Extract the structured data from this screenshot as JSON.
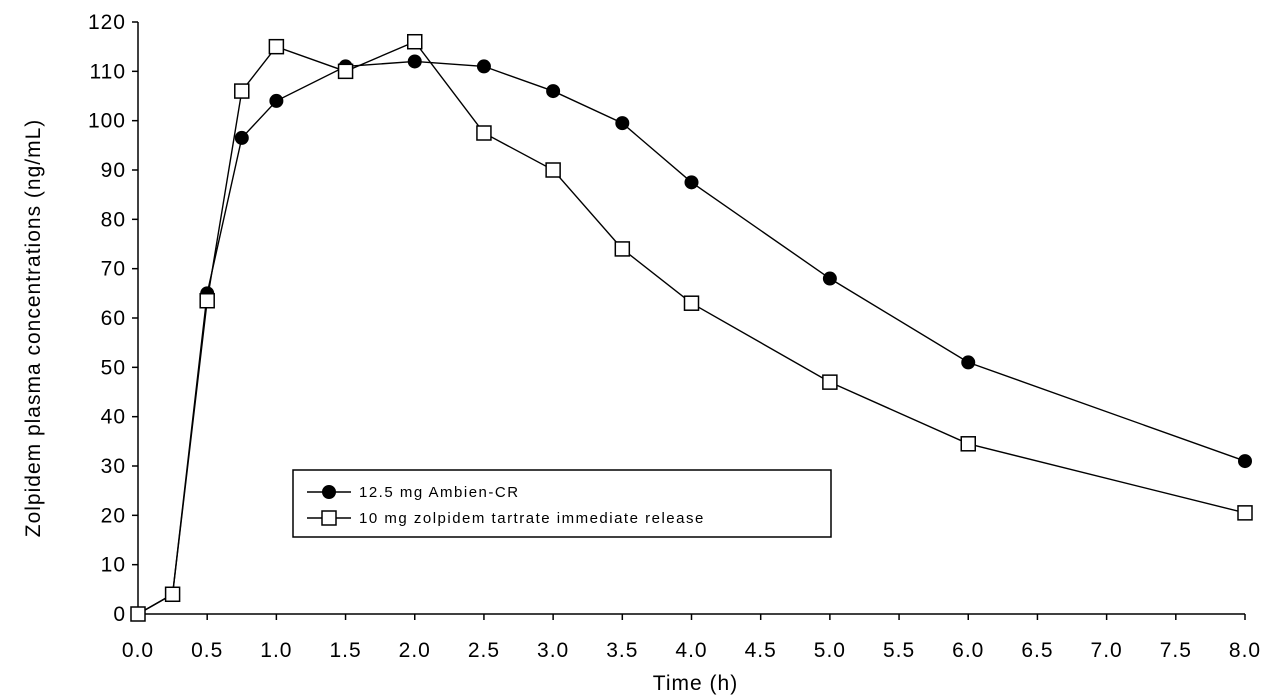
{
  "chart_data": {
    "type": "line",
    "title": "",
    "xlabel": "Time (h)",
    "ylabel": "Zolpidem plasma concentrations (ng/mL)",
    "xlim": [
      0,
      8
    ],
    "ylim": [
      0,
      120
    ],
    "x_ticks": [
      "0.0",
      "0.5",
      "1.0",
      "1.5",
      "2.0",
      "2.5",
      "3.0",
      "3.5",
      "4.0",
      "4.5",
      "5.0",
      "5.5",
      "6.0",
      "6.5",
      "7.0",
      "7.5",
      "8.0"
    ],
    "y_ticks": [
      "0",
      "10",
      "20",
      "30",
      "40",
      "50",
      "60",
      "70",
      "80",
      "90",
      "100",
      "110",
      "120"
    ],
    "grid": false,
    "legend_position": "lower-left-center",
    "series": [
      {
        "name": "12.5 mg Ambien-CR",
        "marker": "filled-circle",
        "color": "#000000",
        "x": [
          0,
          0.25,
          0.5,
          0.75,
          1.0,
          1.5,
          2.0,
          2.5,
          3.0,
          3.5,
          4.0,
          5.0,
          6.0,
          8.0
        ],
        "y": [
          0,
          4,
          65,
          96.5,
          104,
          111,
          112,
          111,
          106,
          99.5,
          87.5,
          68,
          51,
          31
        ]
      },
      {
        "name": "10 mg zolpidem tartrate immediate release",
        "marker": "open-square",
        "color": "#000000",
        "x": [
          0,
          0.25,
          0.5,
          0.75,
          1.0,
          1.5,
          2.0,
          2.5,
          3.0,
          3.5,
          4.0,
          5.0,
          6.0,
          8.0
        ],
        "y": [
          0,
          4,
          63.5,
          106,
          115,
          110,
          116,
          97.5,
          90,
          74,
          63,
          47,
          34.5,
          20.5
        ]
      }
    ]
  }
}
